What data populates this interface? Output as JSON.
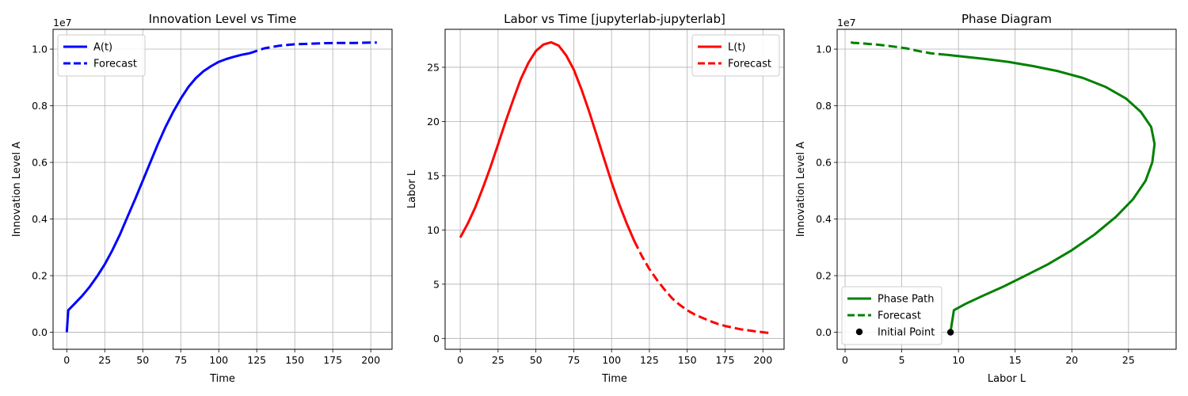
{
  "chart_data": [
    {
      "type": "line",
      "title": "Innovation Level vs Time",
      "xlabel": "Time",
      "ylabel": "Innovation Level A",
      "y_multiplier": "1e7",
      "xlim": [
        -9,
        214
      ],
      "ylim": [
        -0.06,
        1.07
      ],
      "xticks": [
        0,
        25,
        50,
        75,
        100,
        125,
        150,
        175,
        200
      ],
      "yticks": [
        0.0,
        0.2,
        0.4,
        0.6,
        0.8,
        1.0
      ],
      "ytick_labels": [
        "0.0",
        "0.2",
        "0.4",
        "0.6",
        "0.8",
        "1.0"
      ],
      "grid": true,
      "legend_position": "upper-left",
      "series": [
        {
          "name": "A(t)",
          "style": "solid",
          "color": "#0000ff",
          "x": [
            0,
            1,
            5,
            10,
            15,
            20,
            25,
            30,
            35,
            40,
            45,
            50,
            55,
            60,
            65,
            70,
            75,
            80,
            85,
            90,
            95,
            100,
            105,
            110,
            115,
            120
          ],
          "y": [
            0.0,
            0.078,
            0.1,
            0.128,
            0.16,
            0.198,
            0.24,
            0.29,
            0.345,
            0.408,
            0.47,
            0.535,
            0.6,
            0.665,
            0.725,
            0.778,
            0.825,
            0.866,
            0.898,
            0.922,
            0.94,
            0.955,
            0.965,
            0.973,
            0.98,
            0.985
          ]
        },
        {
          "name": "Forecast",
          "style": "dashed",
          "color": "#0000ff",
          "x": [
            120,
            130,
            140,
            150,
            160,
            170,
            180,
            190,
            200,
            204
          ],
          "y": [
            0.985,
            1.003,
            1.012,
            1.017,
            1.019,
            1.021,
            1.022,
            1.022,
            1.023,
            1.023
          ]
        }
      ]
    },
    {
      "type": "line",
      "title": "Labor vs Time [jupyterlab-jupyterlab]",
      "xlabel": "Time",
      "ylabel": "Labor L",
      "xlim": [
        -10,
        214
      ],
      "ylim": [
        -1,
        28.5
      ],
      "xticks": [
        0,
        25,
        50,
        75,
        100,
        125,
        150,
        175,
        200
      ],
      "yticks": [
        0,
        5,
        10,
        15,
        20,
        25
      ],
      "ytick_labels": [
        "0",
        "5",
        "10",
        "15",
        "20",
        "25"
      ],
      "grid": true,
      "legend_position": "upper-right",
      "series": [
        {
          "name": "L(t)",
          "style": "solid",
          "color": "#ff0000",
          "x": [
            0,
            5,
            10,
            15,
            20,
            25,
            30,
            35,
            40,
            45,
            50,
            55,
            60,
            65,
            70,
            75,
            80,
            85,
            90,
            95,
            100,
            105,
            110,
            115
          ],
          "y": [
            9.3,
            10.6,
            12.1,
            13.9,
            15.8,
            17.9,
            20.0,
            22.0,
            23.9,
            25.4,
            26.5,
            27.1,
            27.3,
            27.0,
            26.1,
            24.8,
            23.0,
            21.0,
            18.8,
            16.6,
            14.4,
            12.4,
            10.6,
            9.0
          ]
        },
        {
          "name": "Forecast",
          "style": "dashed",
          "color": "#ff0000",
          "x": [
            115,
            120,
            125,
            130,
            135,
            140,
            145,
            150,
            155,
            160,
            165,
            170,
            175,
            180,
            185,
            190,
            195,
            200,
            204
          ],
          "y": [
            9.0,
            7.6,
            6.4,
            5.4,
            4.5,
            3.7,
            3.1,
            2.6,
            2.2,
            1.9,
            1.6,
            1.35,
            1.15,
            1.0,
            0.85,
            0.75,
            0.65,
            0.57,
            0.5
          ]
        }
      ]
    },
    {
      "type": "line",
      "title": "Phase Diagram",
      "xlabel": "Labor L",
      "ylabel": "Innovation Level A",
      "y_multiplier": "1e7",
      "xlim": [
        -0.7,
        29.2
      ],
      "ylim": [
        -0.06,
        1.07
      ],
      "xticks": [
        0,
        5,
        10,
        15,
        20,
        25
      ],
      "yticks": [
        0.0,
        0.2,
        0.4,
        0.6,
        0.8,
        1.0
      ],
      "ytick_labels": [
        "0.0",
        "0.2",
        "0.4",
        "0.6",
        "0.8",
        "1.0"
      ],
      "grid": true,
      "legend_position": "lower-left",
      "series": [
        {
          "name": "Phase Path",
          "style": "solid",
          "color": "#008000",
          "x": [
            9.3,
            9.6,
            10.6,
            12.1,
            13.9,
            15.8,
            17.9,
            20.0,
            22.0,
            23.9,
            25.4,
            26.5,
            27.1,
            27.3,
            27.0,
            26.1,
            24.8,
            23.0,
            21.0,
            18.8,
            16.6,
            14.4,
            12.4,
            10.6,
            9.0
          ],
          "y": [
            0.0,
            0.078,
            0.1,
            0.128,
            0.16,
            0.198,
            0.24,
            0.29,
            0.345,
            0.408,
            0.47,
            0.535,
            0.6,
            0.665,
            0.725,
            0.778,
            0.825,
            0.866,
            0.898,
            0.922,
            0.94,
            0.955,
            0.965,
            0.973,
            0.98
          ]
        },
        {
          "name": "Forecast",
          "style": "dashed",
          "color": "#008000",
          "x": [
            9.0,
            7.6,
            6.4,
            5.4,
            4.5,
            3.7,
            3.1,
            2.6,
            2.2,
            1.9,
            1.6,
            1.35,
            1.15,
            1.0,
            0.85,
            0.75,
            0.65,
            0.57,
            0.5
          ],
          "y": [
            0.98,
            0.985,
            0.994,
            1.003,
            1.008,
            1.012,
            1.015,
            1.017,
            1.018,
            1.019,
            1.02,
            1.021,
            1.021,
            1.022,
            1.022,
            1.022,
            1.023,
            1.023,
            1.023
          ]
        },
        {
          "name": "Initial Point",
          "style": "marker",
          "color": "#000000",
          "x": [
            9.3
          ],
          "y": [
            0.0
          ]
        }
      ]
    }
  ]
}
